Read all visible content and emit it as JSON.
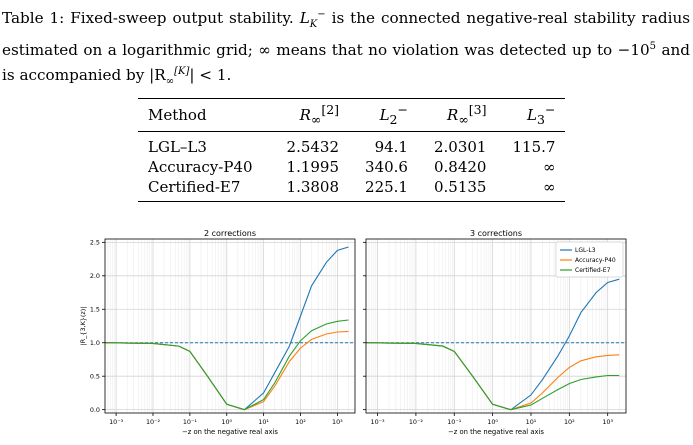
{
  "caption": {
    "label": "Table 1:",
    "pre": "Fixed-sweep output stability.",
    "symbol": "L",
    "symbol_sub": "K",
    "symbol_sup": "−",
    "body1": "is the connected negative-real stability radius estimated on a logarithmic grid; ∞ means that no violation was detected up to −10",
    "exp": "5",
    "body2": "and is accompanied by |R",
    "r_sub": "∞",
    "r_sup": "[K]",
    "body3": "| < 1."
  },
  "table": {
    "headers": [
      {
        "base": "Method"
      },
      {
        "base": "R",
        "sub": "∞",
        "sup": "[2]"
      },
      {
        "base": "L",
        "sub": "2",
        "sup": "−"
      },
      {
        "base": "R",
        "sub": "∞",
        "sup": "[3]"
      },
      {
        "base": "L",
        "sub": "3",
        "sup": "−"
      }
    ],
    "rows": [
      [
        "LGL–L3",
        "2.5432",
        "94.1",
        "2.0301",
        "115.7"
      ],
      [
        "Accuracy-P40",
        "1.1995",
        "340.6",
        "0.8420",
        "∞"
      ],
      [
        "Certified-E7",
        "1.3808",
        "225.1",
        "0.5135",
        "∞"
      ]
    ]
  },
  "chart_data": [
    {
      "type": "line",
      "title": "2 corrections",
      "xlabel": "−z on the negative real axis",
      "ylabel": "|R_{3,K}(z)|",
      "xscale": "log",
      "xlim": [
        0.0005,
        3000
      ],
      "ylim": [
        -0.05,
        2.55
      ],
      "xticks": [
        "10⁻³",
        "10⁻²",
        "10⁻¹",
        "10⁰",
        "10¹",
        "10²",
        "10³"
      ],
      "yticks": [
        "0.0",
        "0.5",
        "1.0",
        "1.5",
        "2.0",
        "2.5"
      ],
      "grid": true,
      "reference_line": 1.0,
      "series": [
        {
          "name": "LGL-L3",
          "color": "#1f77b4",
          "x": [
            0.0005,
            0.01,
            0.05,
            0.1,
            0.3,
            1,
            3,
            10,
            20,
            50,
            100,
            200,
            500,
            1000,
            2000
          ],
          "y": [
            1.0,
            0.99,
            0.95,
            0.87,
            0.5,
            0.08,
            0.0,
            0.25,
            0.55,
            0.95,
            1.4,
            1.85,
            2.2,
            2.38,
            2.43
          ]
        },
        {
          "name": "Accuracy-P40",
          "color": "#ff7f0e",
          "x": [
            0.0005,
            0.01,
            0.05,
            0.1,
            0.3,
            1,
            3,
            10,
            20,
            50,
            100,
            200,
            500,
            1000,
            2000
          ],
          "y": [
            1.0,
            0.99,
            0.95,
            0.87,
            0.5,
            0.08,
            0.0,
            0.12,
            0.35,
            0.72,
            0.92,
            1.05,
            1.13,
            1.16,
            1.17
          ]
        },
        {
          "name": "Certified-E7",
          "color": "#2ca02c",
          "x": [
            0.0005,
            0.01,
            0.05,
            0.1,
            0.3,
            1,
            3,
            10,
            20,
            50,
            100,
            200,
            500,
            1000,
            2000
          ],
          "y": [
            1.0,
            0.99,
            0.95,
            0.87,
            0.5,
            0.08,
            0.0,
            0.15,
            0.4,
            0.8,
            1.03,
            1.18,
            1.28,
            1.32,
            1.34
          ]
        }
      ]
    },
    {
      "type": "line",
      "title": "3 corrections",
      "xlabel": "−z on the negative real axis",
      "xscale": "log",
      "xlim": [
        0.0005,
        3000
      ],
      "ylim": [
        -0.05,
        2.55
      ],
      "xticks": [
        "10⁻³",
        "10⁻²",
        "10⁻¹",
        "10⁰",
        "10¹",
        "10²",
        "10³"
      ],
      "grid": true,
      "reference_line": 1.0,
      "legend": "top-right",
      "series": [
        {
          "name": "LGL-L3",
          "color": "#1f77b4",
          "x": [
            0.0005,
            0.01,
            0.05,
            0.1,
            0.3,
            1,
            3,
            10,
            20,
            50,
            100,
            200,
            500,
            1000,
            2000
          ],
          "y": [
            1.0,
            0.99,
            0.95,
            0.87,
            0.5,
            0.08,
            0.0,
            0.22,
            0.45,
            0.8,
            1.1,
            1.45,
            1.75,
            1.9,
            1.95
          ]
        },
        {
          "name": "Accuracy-P40",
          "color": "#ff7f0e",
          "x": [
            0.0005,
            0.01,
            0.05,
            0.1,
            0.3,
            1,
            3,
            10,
            20,
            50,
            100,
            200,
            500,
            1000,
            2000
          ],
          "y": [
            1.0,
            0.99,
            0.95,
            0.87,
            0.5,
            0.08,
            0.0,
            0.1,
            0.25,
            0.48,
            0.63,
            0.73,
            0.79,
            0.81,
            0.82
          ]
        },
        {
          "name": "Certified-E7",
          "color": "#2ca02c",
          "x": [
            0.0005,
            0.01,
            0.05,
            0.1,
            0.3,
            1,
            3,
            10,
            20,
            50,
            100,
            200,
            500,
            1000,
            2000
          ],
          "y": [
            1.0,
            0.99,
            0.95,
            0.87,
            0.5,
            0.08,
            0.0,
            0.07,
            0.17,
            0.3,
            0.39,
            0.45,
            0.49,
            0.51,
            0.51
          ]
        }
      ]
    }
  ]
}
